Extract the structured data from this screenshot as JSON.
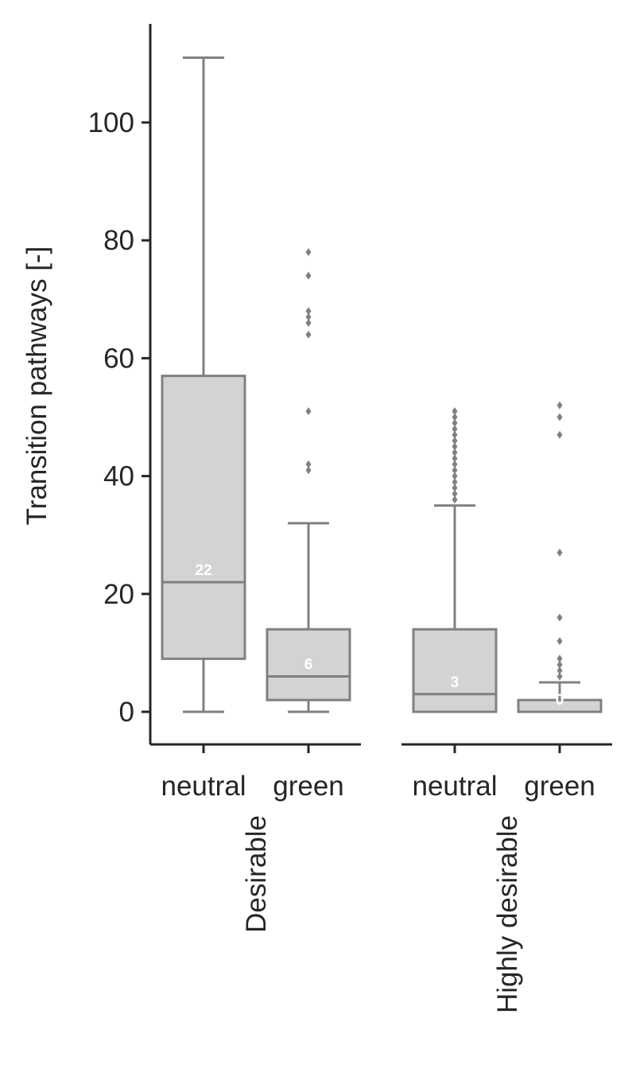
{
  "chart_data": {
    "type": "box",
    "ylabel": "Transition pathways [-]",
    "ylim": [
      -6,
      117
    ],
    "yticks": [
      0,
      20,
      40,
      60,
      80,
      100
    ],
    "grid": false,
    "colors": {
      "box_fill": "#d3d3d3",
      "box_line": "#808080",
      "axis": "#262626",
      "median_label": "#ffffff"
    },
    "panels": [
      {
        "label": "Desirable",
        "categories": [
          "neutral",
          "green"
        ],
        "boxes": [
          {
            "category": "neutral",
            "min": 0,
            "q1": 9,
            "median": 22,
            "q3": 57,
            "max": 111,
            "median_label": "22",
            "outliers": []
          },
          {
            "category": "green",
            "min": 0,
            "q1": 2,
            "median": 6,
            "q3": 14,
            "max": 32,
            "median_label": "6",
            "outliers": [
              41,
              42,
              51,
              64,
              66,
              67,
              68,
              74,
              78
            ]
          }
        ]
      },
      {
        "label": "Highly desirable",
        "categories": [
          "neutral",
          "green"
        ],
        "boxes": [
          {
            "category": "neutral",
            "min": 0,
            "q1": 0,
            "median": 3,
            "q3": 14,
            "max": 35,
            "median_label": "3",
            "outliers": [
              36,
              37,
              38,
              39,
              40,
              41,
              42,
              43,
              44,
              45,
              46,
              47,
              48,
              49,
              50,
              51
            ]
          },
          {
            "category": "green",
            "min": 0,
            "q1": 0,
            "median": 0,
            "q3": 2,
            "max": 5,
            "median_label": "0",
            "outliers": [
              6,
              7,
              8,
              9,
              12,
              16,
              27,
              47,
              50,
              52
            ]
          }
        ]
      }
    ]
  }
}
